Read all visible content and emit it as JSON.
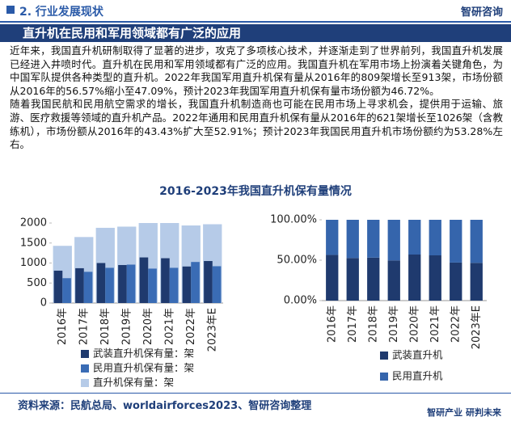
{
  "header": {
    "section": "2. 行业发展现状",
    "logo": "智研咨询"
  },
  "banner": "直升机在民用和军用领域都有广泛的应用",
  "paragraphs": [
    "近年来，我国直升机研制取得了显著的进步，攻克了多项核心技术，并逐渐走到了世界前列，我国直升机发展已经进入井喷时代。直升机在民用和军用领域都有广泛的应用。我国直升机在军用市场上扮演着关键角色，为中国军队提供各种类型的直升机。2022年我国军用直升机保有量从2016年的809架增长至913架，市场份额从2016年的56.57%缩小至47.09%，预计2023年我国军用直升机保有量市场份额为46.72%。",
    "随着我国民航和民用航空需求的增长，我国直升机制造商也可能在民用市场上寻求机会，提供用于运输、旅游、医疗救援等领域的直升机产品。2022年通用和民用直升机保有量从2016年的621架增长至1026架（含教练机），市场份额从2016年的43.43%扩大至52.91%；预计2023年我国民用直升机市场份额约为53.28%左右。"
  ],
  "figure_title": "2016-2023年我国直升机保有量情况",
  "chart_data": [
    {
      "type": "bar",
      "stacked": false,
      "categories": [
        "2016年",
        "2017年",
        "2018年",
        "2019年",
        "2020年",
        "2021年",
        "2022年",
        "2023年E"
      ],
      "series": [
        {
          "name": "武装直升机保有量：架",
          "color": "#1f3a6e",
          "values": [
            809,
            870,
            1000,
            950,
            1140,
            1120,
            913,
            1050
          ]
        },
        {
          "name": "民用直升机保有量：架",
          "color": "#3a6cb5",
          "values": [
            621,
            780,
            880,
            960,
            860,
            880,
            1026,
            920
          ]
        },
        {
          "name": "直升机保有量：架",
          "color": "#b6cbe8",
          "overlay": true,
          "values": [
            1430,
            1650,
            1880,
            1910,
            2000,
            2000,
            1939,
            1970
          ]
        }
      ],
      "ylim": [
        0,
        2000
      ],
      "yticks": [
        0,
        500,
        1000,
        1500,
        2000
      ]
    },
    {
      "type": "bar",
      "stacked": true,
      "categories": [
        "2016年",
        "2017年",
        "2018年",
        "2019年",
        "2020年",
        "2021年",
        "2022年",
        "2023年E"
      ],
      "series": [
        {
          "name": "武装直升机",
          "color": "#1f3a6e",
          "values": [
            56.57,
            52.73,
            53.19,
            49.74,
            57.0,
            56.0,
            47.09,
            46.72
          ]
        },
        {
          "name": "民用直升机",
          "color": "#3565ac",
          "values": [
            43.43,
            47.27,
            46.81,
            50.26,
            43.0,
            44.0,
            52.91,
            53.28
          ]
        }
      ],
      "ylim": [
        0,
        100
      ],
      "yticks": [
        {
          "value": 0,
          "label": "0.00%"
        },
        {
          "value": 50,
          "label": "50.00%"
        },
        {
          "value": 100,
          "label": "100.00%"
        }
      ]
    }
  ],
  "footer": {
    "source": "资料来源：民航总局、worldairforces2023、智研咨询整理",
    "slogan": "智研产业 研判未来"
  }
}
